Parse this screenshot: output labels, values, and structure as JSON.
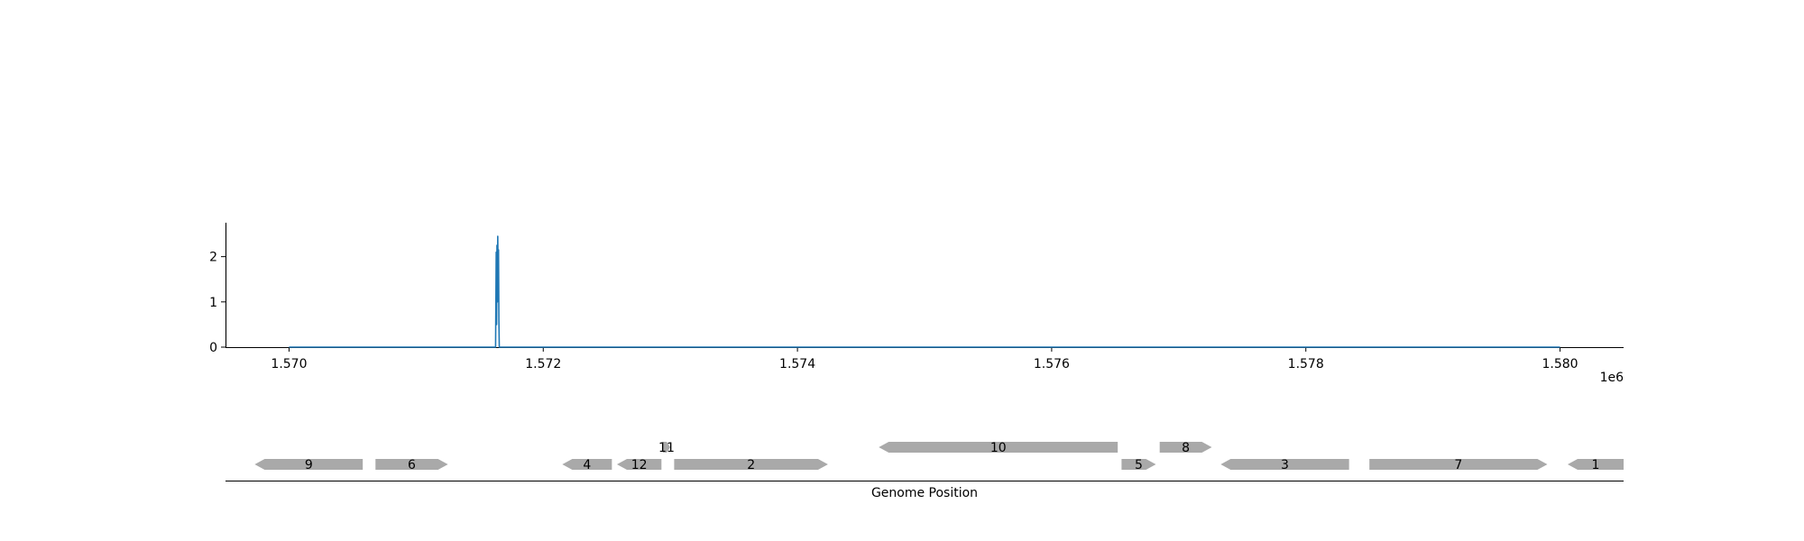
{
  "chart_data": [
    {
      "type": "line",
      "title": "",
      "xlabel": "",
      "ylabel": "",
      "xlim": [
        1569500,
        1580500
      ],
      "ylim": [
        0,
        2.75
      ],
      "x_ticks": [
        1570000,
        1572000,
        1574000,
        1576000,
        1578000,
        1580000
      ],
      "x_tick_labels": [
        "1.570",
        "1.572",
        "1.574",
        "1.576",
        "1.578",
        "1.580"
      ],
      "x_offset_label": "1e6",
      "y_ticks": [
        0,
        1,
        2
      ],
      "y_tick_labels": [
        "0",
        "1",
        "2"
      ],
      "grid": false,
      "series": [
        {
          "name": "",
          "color": "#1f77b4",
          "points": [
            [
              1570000,
              0
            ],
            [
              1571625,
              0
            ],
            [
              1571628,
              1.2
            ],
            [
              1571630,
              2.1
            ],
            [
              1571633,
              0.5
            ],
            [
              1571636,
              2.25
            ],
            [
              1571639,
              1.0
            ],
            [
              1571642,
              2.45
            ],
            [
              1571645,
              1.6
            ],
            [
              1571648,
              2.15
            ],
            [
              1571651,
              0.6
            ],
            [
              1571654,
              0
            ],
            [
              1580000,
              0
            ]
          ]
        }
      ]
    },
    {
      "type": "gene_track",
      "xlabel": "Genome Position",
      "xlim": [
        1569500,
        1580500
      ],
      "feature_color": "#a9a9a9",
      "features": [
        {
          "label": "9",
          "start": 1569730,
          "end": 1570580,
          "strand": -1,
          "row": 0
        },
        {
          "label": "6",
          "start": 1570680,
          "end": 1571250,
          "strand": 1,
          "row": 0
        },
        {
          "label": "4",
          "start": 1572150,
          "end": 1572540,
          "strand": -1,
          "row": 0
        },
        {
          "label": "12",
          "start": 1572580,
          "end": 1572930,
          "strand": -1,
          "row": 0
        },
        {
          "label": "2",
          "start": 1573030,
          "end": 1574240,
          "strand": 1,
          "row": 0
        },
        {
          "label": "11",
          "start": 1572940,
          "end": 1573000,
          "strand": 1,
          "row": 1
        },
        {
          "label": "10",
          "start": 1574640,
          "end": 1576520,
          "strand": -1,
          "row": 1
        },
        {
          "label": "5",
          "start": 1576550,
          "end": 1576820,
          "strand": 1,
          "row": 0
        },
        {
          "label": "8",
          "start": 1576850,
          "end": 1577260,
          "strand": 1,
          "row": 1
        },
        {
          "label": "3",
          "start": 1577330,
          "end": 1578340,
          "strand": -1,
          "row": 0
        },
        {
          "label": "7",
          "start": 1578500,
          "end": 1579900,
          "strand": 1,
          "row": 0
        },
        {
          "label": "1",
          "start": 1580060,
          "end": 1580500,
          "strand": -1,
          "row": 0
        }
      ]
    }
  ]
}
